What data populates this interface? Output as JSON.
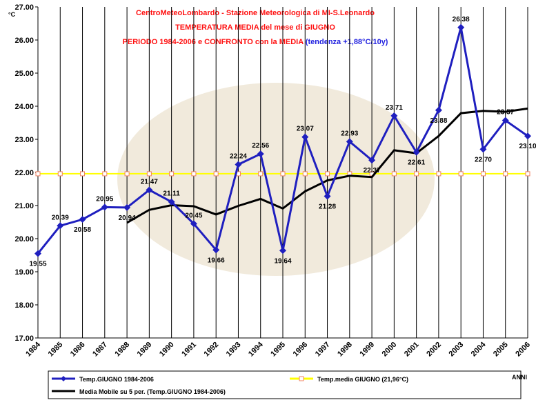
{
  "chart_data": {
    "type": "line",
    "title_lines": [
      "CentroMeteoLombardo - Stazione Meteorologica di MI-S.Leonardo",
      "TEMPERATURA MEDIA del mese di GIUGNO"
    ],
    "title_period": "PERIODO 1984-2006 e CONFRONTO con la MEDIA",
    "title_trend": "(tendenza +1,88°C/10y)",
    "y_label": "°C",
    "x_label": "ANNI",
    "categories": [
      "1984",
      "1985",
      "1986",
      "1987",
      "1988",
      "1989",
      "1990",
      "1991",
      "1992",
      "1993",
      "1994",
      "1995",
      "1996",
      "1997",
      "1998",
      "1999",
      "2000",
      "2001",
      "2002",
      "2003",
      "2004",
      "2005",
      "2006"
    ],
    "series": [
      {
        "name": "Temp.GIUGNO 1984-2006",
        "color": "#1f1fbf",
        "marker": "diamond",
        "values": [
          19.55,
          20.39,
          20.58,
          20.95,
          20.94,
          21.47,
          21.11,
          20.45,
          19.66,
          22.24,
          22.56,
          19.64,
          23.07,
          21.28,
          22.93,
          22.37,
          23.71,
          22.61,
          23.88,
          26.38,
          22.7,
          23.57,
          23.1
        ],
        "value_labels": [
          "19.55",
          "20.39",
          "20.58",
          "20.95",
          "20.94",
          "21.47",
          "21.11",
          "20.45",
          "19.66",
          "22.24",
          "22.56",
          "19.64",
          "23.07",
          "21.28",
          "22.93",
          "22.37",
          "23.71",
          "22.61",
          "23.88",
          "26.38",
          "22.70",
          "23.57",
          "23.10"
        ]
      },
      {
        "name": "Temp.media GIUGNO (21,96°C)",
        "color": "#ffff00",
        "marker": "square",
        "values": [
          21.96,
          21.96,
          21.96,
          21.96,
          21.96,
          21.96,
          21.96,
          21.96,
          21.96,
          21.96,
          21.96,
          21.96,
          21.96,
          21.96,
          21.96,
          21.96,
          21.96,
          21.96,
          21.96,
          21.96,
          21.96,
          21.96,
          21.96
        ]
      },
      {
        "name": "Media Mobile su 5 per. (Temp.GIUGNO 1984-2006)",
        "color": "#000000",
        "marker": "none",
        "values": [
          null,
          null,
          null,
          null,
          20.48,
          20.87,
          21.01,
          20.98,
          20.73,
          20.99,
          21.2,
          20.91,
          21.43,
          21.76,
          21.9,
          21.86,
          22.67,
          22.58,
          23.1,
          23.79,
          23.86,
          23.83,
          23.93
        ]
      }
    ],
    "ylim": [
      17,
      27
    ],
    "yticks": [
      {
        "value": 17,
        "label": "17.00"
      },
      {
        "value": 18,
        "label": "18.00"
      },
      {
        "value": 19,
        "label": "19.00"
      },
      {
        "value": 20,
        "label": "20.00"
      },
      {
        "value": 21,
        "label": "21.00"
      },
      {
        "value": 22,
        "label": "22.00"
      },
      {
        "value": 23,
        "label": "23.00"
      },
      {
        "value": 24,
        "label": "24.00"
      },
      {
        "value": 25,
        "label": "25.00"
      },
      {
        "value": 26,
        "label": "26.00"
      },
      {
        "value": 27,
        "label": "27.00"
      }
    ],
    "grid": true
  }
}
